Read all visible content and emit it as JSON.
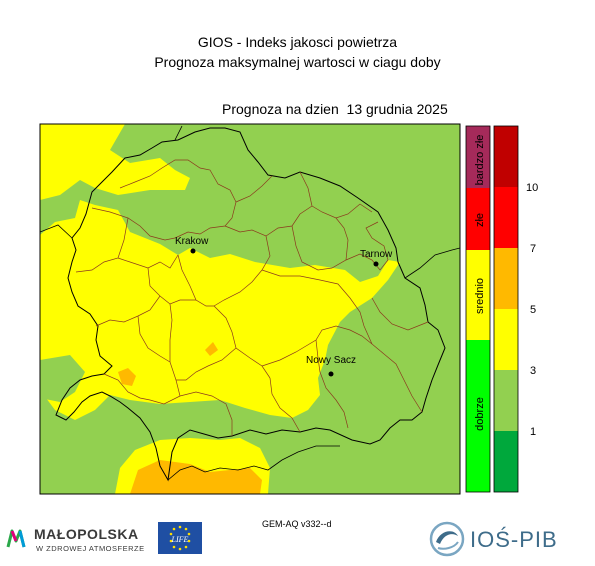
{
  "header": {
    "title_line1": "GIOS - Indeks jakosci powietrza",
    "title_line2": "Prognoza maksymalnej wartosci w ciagu doby",
    "forecast_date": "Prognoza na dzien  13 grudnia 2025"
  },
  "map": {
    "region": "Małopolska",
    "cities": [
      {
        "name": "Krakow"
      },
      {
        "name": "Tarnow"
      },
      {
        "name": "Nowy Sacz"
      }
    ]
  },
  "legend": {
    "categories": [
      {
        "label": "bardzo złe",
        "color": "#a52a5a"
      },
      {
        "label": "złe",
        "color": "#ff0000"
      },
      {
        "label": "srednio",
        "color": "#ffff00"
      },
      {
        "label": "dobrze",
        "color": "#00ff00"
      }
    ],
    "scale": [
      {
        "color": "#00a83c"
      },
      {
        "color": "#92d050"
      },
      {
        "color": "#ffff00"
      },
      {
        "color": "#ffb900"
      },
      {
        "color": "#ff0000"
      },
      {
        "color": "#c00000"
      }
    ],
    "ticks": [
      "1",
      "3",
      "5",
      "7",
      "10"
    ]
  },
  "colors": {
    "level_green": "#92d050",
    "level_yellow": "#ffff00",
    "level_orange": "#ffb900",
    "boundary_black": "#000000",
    "boundary_district": "#8b3a1e"
  },
  "footer": {
    "model": "GEM-AQ v332--d",
    "malopolska_name": "MAŁOPOLSKA",
    "malopolska_tagline": "W ZDROWEJ ATMOSFERZE",
    "eu_logo_text": "LIFE",
    "ios_name": "IOŚ-PIB"
  }
}
